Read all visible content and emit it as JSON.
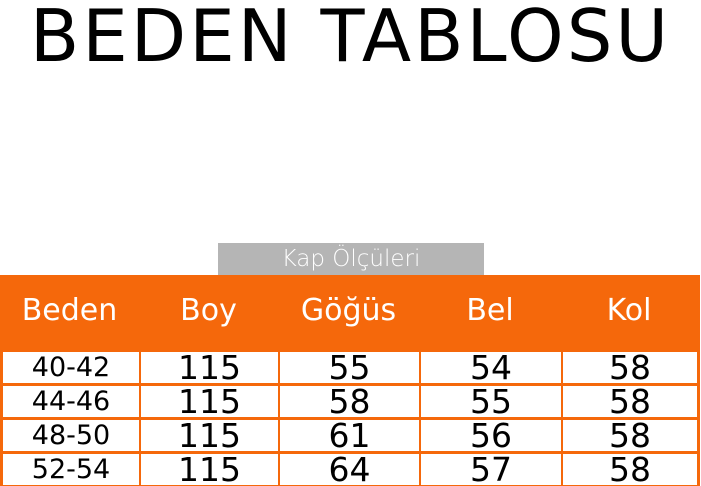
{
  "title": "BEDEN TABLOSU",
  "caption": "Kap Ölçüleri",
  "colors": {
    "header": "#f5680b",
    "caption_bg": "#b5b5b5"
  },
  "table": {
    "headers": [
      "Beden",
      "Boy",
      "Göğüs",
      "Bel",
      "Kol"
    ],
    "rows": [
      [
        "40-42",
        "115",
        "55",
        "54",
        "58"
      ],
      [
        "44-46",
        "115",
        "58",
        "55",
        "58"
      ],
      [
        "48-50",
        "115",
        "61",
        "56",
        "58"
      ],
      [
        "52-54",
        "115",
        "64",
        "57",
        "58"
      ]
    ]
  }
}
